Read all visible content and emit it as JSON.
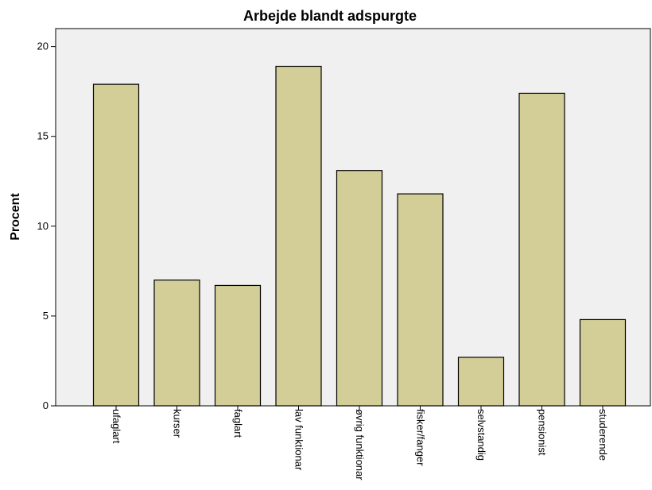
{
  "chart_data": {
    "type": "bar",
    "title": "Arbejde blandt adspurgte",
    "xlabel": "",
    "ylabel": "Procent",
    "ylim": [
      0,
      21
    ],
    "yticks": [
      0,
      5,
      10,
      15,
      20
    ],
    "grid": false,
    "categories": [
      "ufaglart",
      "kurser",
      "faglart",
      "lav funktionar",
      "øvrig funktionar",
      "fisker/fanger",
      "selvstandig",
      "pensionist",
      "studerende"
    ],
    "values": [
      17.9,
      7.0,
      6.7,
      18.9,
      13.1,
      11.8,
      2.7,
      17.4,
      4.8
    ],
    "colors": {
      "bar": "#d3ce98",
      "plot_background": "#f0f0f0"
    }
  }
}
